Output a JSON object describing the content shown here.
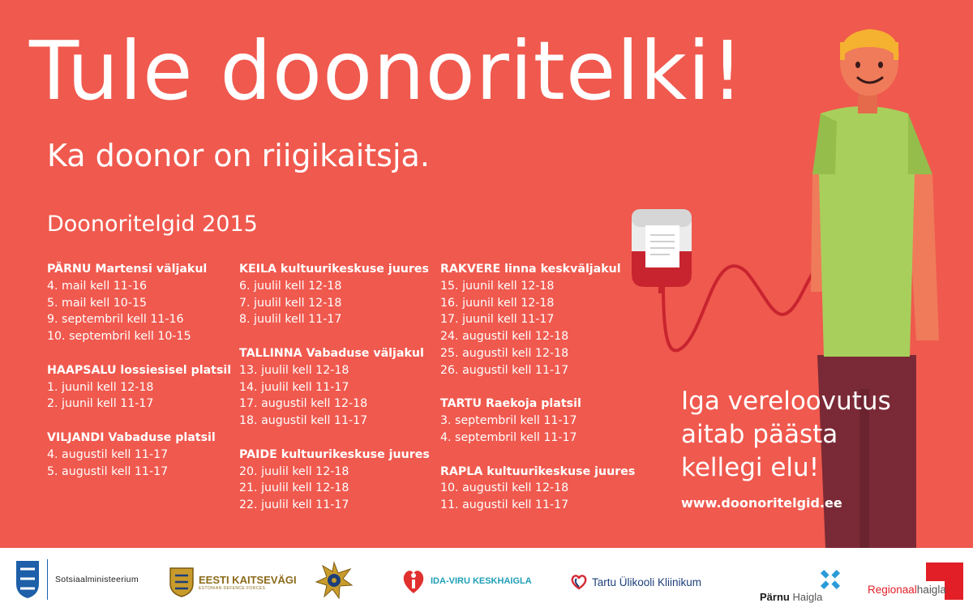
{
  "headline": "Tule doonoritelki!",
  "subline": "Ka doonor on riigikaitsja.",
  "schedule_title": "Doonoritelgid 2015",
  "columns": [
    {
      "groups": [
        {
          "place": "PÄRNU Martensi väljakul",
          "dates": [
            "4. mail kell 11-16",
            "5. mail kell 10-15",
            "9. septembril kell 11-16",
            "10. septembril kell 10-15"
          ]
        },
        {
          "place": "HAAPSALU lossiesisel platsil",
          "dates": [
            "1. juunil kell 12-18",
            "2. juunil kell 11-17"
          ]
        },
        {
          "place": "VILJANDI Vabaduse platsil",
          "dates": [
            "4. augustil kell 11-17",
            "5. augustil kell 11-17"
          ]
        }
      ]
    },
    {
      "groups": [
        {
          "place": "KEILA kultuurikeskuse juures",
          "dates": [
            "6. juulil kell 12-18",
            "7. juulil kell 12-18",
            "8. juulil kell 11-17"
          ]
        },
        {
          "place": "TALLINNA Vabaduse väljakul",
          "dates": [
            "13. juulil kell 12-18",
            "14. juulil kell 11-17",
            "17. augustil kell 12-18",
            "18. augustil kell 11-17"
          ]
        },
        {
          "place": "PAIDE kultuurikeskuse juures",
          "dates": [
            "20. juulil kell 12-18",
            "21. juulil kell 12-18",
            "22. juulil kell 11-17"
          ]
        }
      ]
    },
    {
      "groups": [
        {
          "place": "RAKVERE linna keskväljakul",
          "dates": [
            "15. juunil kell 12-18",
            "16. juunil kell 12-18",
            "17. juunil kell 11-17",
            "24. augustil kell 12-18",
            "25. augustil kell 12-18",
            "26. augustil kell 11-17"
          ]
        },
        {
          "place": "TARTU Raekoja platsil",
          "dates": [
            "3. septembril kell 11-17",
            "4. septembril kell 11-17"
          ]
        },
        {
          "place": "RAPLA kultuurikeskuse juures",
          "dates": [
            "10. augustil kell 12-18",
            "11. augustil kell 11-17"
          ]
        }
      ]
    }
  ],
  "slogan": [
    "Iga vereloovutus",
    "aitab päästa",
    "kellegi elu!"
  ],
  "website": "www.doonoritelgid.ee",
  "colors": {
    "background": "#f0594e",
    "text": "#ffffff",
    "shirt": "#a8cf5c",
    "trousers": "#7a2a36",
    "blood": "#c8242f",
    "skin": "#ef7b5a",
    "hair": "#f5b130"
  },
  "icons": [
    "estonian-coat-of-arms-icon",
    "kaitsevagi-emblem-icon",
    "rescue-board-emblem-icon",
    "ida-viru-heart-icon",
    "tartu-heart-icon",
    "parnu-cross-icon",
    "regionaalhaigla-square-icon"
  ],
  "sponsors": {
    "sotsiaal": "Sotsiaalministeerium",
    "kaitsevagi": "EESTI KAITSEVÄGI",
    "kaitsevagi_sub": "ESTONIAN DEFENCE FORCES",
    "idaviru": "IDA-VIRU KESKHAIGLA",
    "tartu": "Tartu Ülikooli Kliinikum",
    "parnu_a": "Pärnu",
    "parnu_b": "Haigla",
    "regio_a": "Regionaal",
    "regio_b": "haigla"
  }
}
